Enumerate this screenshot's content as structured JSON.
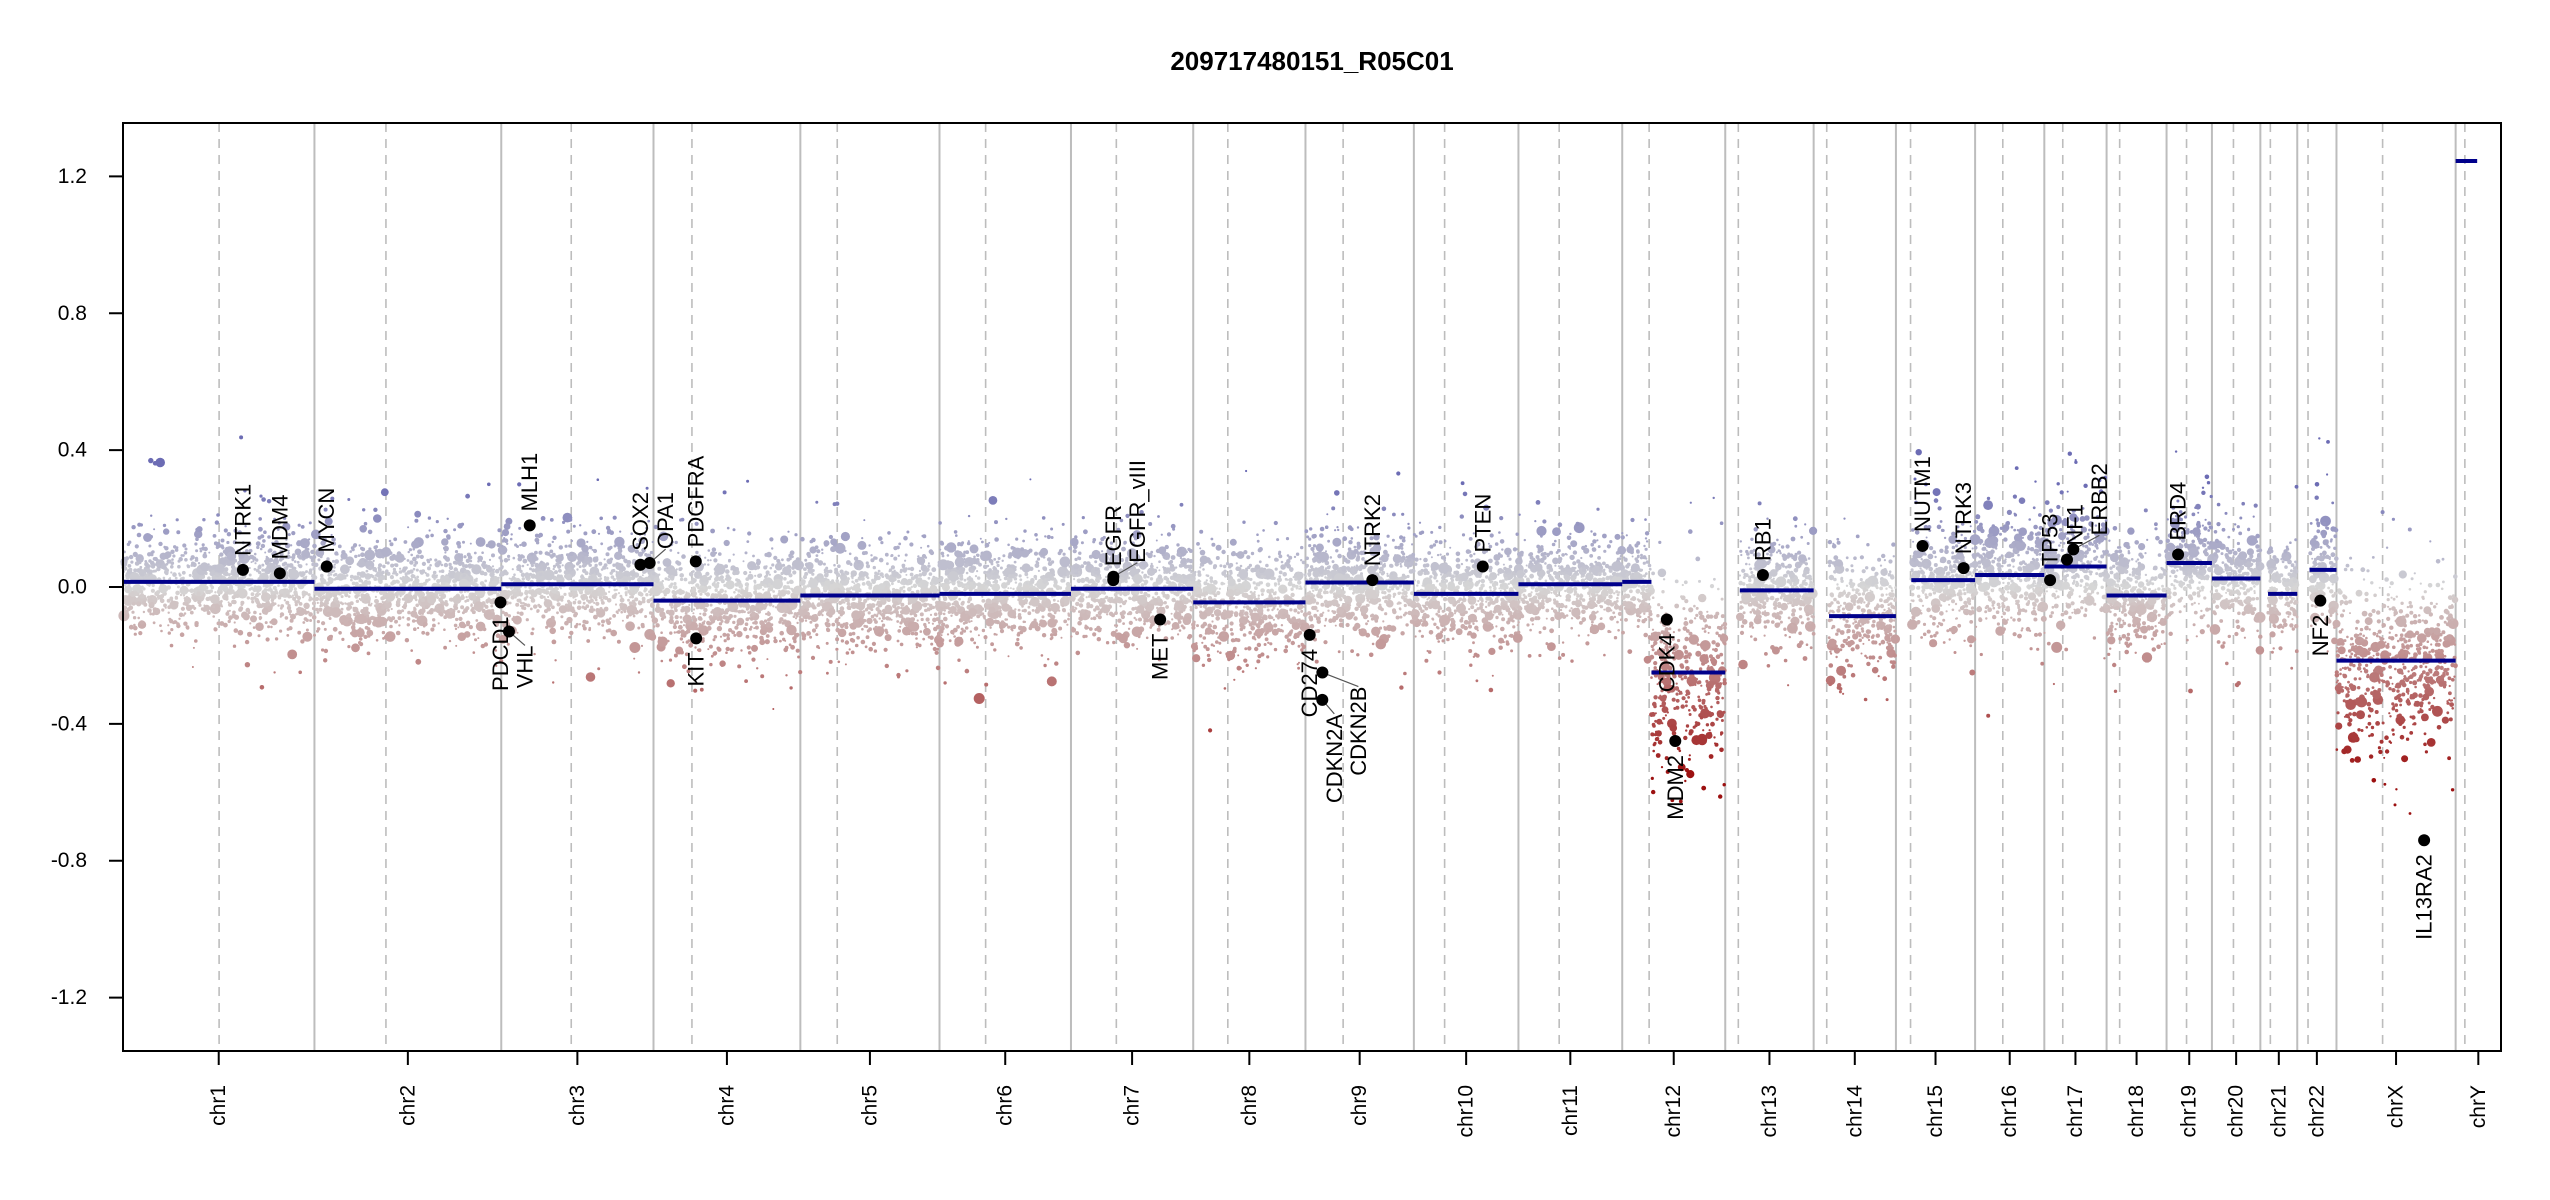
{
  "chart_data": {
    "type": "scatter",
    "title": "209717480151_R05C01",
    "xlabel": "",
    "ylabel": "",
    "ylim": [
      -1.356,
      1.356
    ],
    "yticks": [
      {
        "value": -1.2,
        "label": "-1.2"
      },
      {
        "value": -0.8,
        "label": "-0.8"
      },
      {
        "value": -0.4,
        "label": "-0.4"
      },
      {
        "value": 0.0,
        "label": "0.0"
      },
      {
        "value": 0.4,
        "label": "0.4"
      },
      {
        "value": 0.8,
        "label": "0.8"
      },
      {
        "value": 1.2,
        "label": "1.2"
      }
    ],
    "x_units": "Mb",
    "chromosomes": [
      {
        "name": "chr1",
        "length": 249,
        "centromere": 125
      },
      {
        "name": "chr2",
        "length": 243,
        "centromere": 93
      },
      {
        "name": "chr3",
        "length": 198,
        "centromere": 91
      },
      {
        "name": "chr4",
        "length": 191,
        "centromere": 50
      },
      {
        "name": "chr5",
        "length": 181,
        "centromere": 48
      },
      {
        "name": "chr6",
        "length": 171,
        "centromere": 60
      },
      {
        "name": "chr7",
        "length": 159,
        "centromere": 59
      },
      {
        "name": "chr8",
        "length": 146,
        "centromere": 45
      },
      {
        "name": "chr9",
        "length": 141,
        "centromere": 49
      },
      {
        "name": "chr10",
        "length": 136,
        "centromere": 40
      },
      {
        "name": "chr11",
        "length": 135,
        "centromere": 53
      },
      {
        "name": "chr12",
        "length": 134,
        "centromere": 35
      },
      {
        "name": "chr13",
        "length": 115,
        "centromere": 17
      },
      {
        "name": "chr14",
        "length": 107,
        "centromere": 17
      },
      {
        "name": "chr15",
        "length": 103,
        "centromere": 19
      },
      {
        "name": "chr16",
        "length": 90,
        "centromere": 36
      },
      {
        "name": "chr17",
        "length": 81,
        "centromere": 24
      },
      {
        "name": "chr18",
        "length": 78,
        "centromere": 17
      },
      {
        "name": "chr19",
        "length": 59,
        "centromere": 26
      },
      {
        "name": "chr20",
        "length": 63,
        "centromere": 28
      },
      {
        "name": "chr21",
        "length": 48,
        "centromere": 13
      },
      {
        "name": "chr22",
        "length": 51,
        "centromere": 14
      },
      {
        "name": "chrX",
        "length": 155,
        "centromere": 60
      },
      {
        "name": "chrY",
        "length": 59,
        "centromere": 12
      }
    ],
    "segments": [
      {
        "chr": "chr1",
        "start": 0,
        "end": 249,
        "mean": 0.015
      },
      {
        "chr": "chr2",
        "start": 0,
        "end": 243,
        "mean": -0.005
      },
      {
        "chr": "chr3",
        "start": 0,
        "end": 198,
        "mean": 0.008
      },
      {
        "chr": "chr4",
        "start": 0,
        "end": 191,
        "mean": -0.04
      },
      {
        "chr": "chr5",
        "start": 0,
        "end": 181,
        "mean": -0.025
      },
      {
        "chr": "chr6",
        "start": 0,
        "end": 171,
        "mean": -0.02
      },
      {
        "chr": "chr7",
        "start": 0,
        "end": 159,
        "mean": -0.005
      },
      {
        "chr": "chr8",
        "start": 0,
        "end": 146,
        "mean": -0.045
      },
      {
        "chr": "chr9",
        "start": 0,
        "end": 141,
        "mean": 0.013
      },
      {
        "chr": "chr10",
        "start": 0,
        "end": 136,
        "mean": -0.02
      },
      {
        "chr": "chr11",
        "start": 0,
        "end": 135,
        "mean": 0.008
      },
      {
        "chr": "chr12",
        "start": 0,
        "end": 38,
        "mean": 0.015
      },
      {
        "chr": "chr12",
        "start": 38,
        "end": 134,
        "mean": -0.25
      },
      {
        "chr": "chr13",
        "start": 19,
        "end": 115,
        "mean": -0.01
      },
      {
        "chr": "chr14",
        "start": 20,
        "end": 107,
        "mean": -0.085
      },
      {
        "chr": "chr15",
        "start": 20,
        "end": 103,
        "mean": 0.02
      },
      {
        "chr": "chr16",
        "start": 0,
        "end": 90,
        "mean": 0.035
      },
      {
        "chr": "chr17",
        "start": 0,
        "end": 81,
        "mean": 0.06
      },
      {
        "chr": "chr18",
        "start": 0,
        "end": 78,
        "mean": -0.025
      },
      {
        "chr": "chr19",
        "start": 0,
        "end": 59,
        "mean": 0.07
      },
      {
        "chr": "chr20",
        "start": 0,
        "end": 63,
        "mean": 0.025
      },
      {
        "chr": "chr21",
        "start": 10,
        "end": 48,
        "mean": -0.02
      },
      {
        "chr": "chr22",
        "start": 16,
        "end": 51,
        "mean": 0.05
      },
      {
        "chr": "chrX",
        "start": 0,
        "end": 155,
        "mean": -0.215
      },
      {
        "chr": "chrY",
        "start": 0,
        "end": 28,
        "mean": 1.245
      }
    ],
    "genes": [
      {
        "name": "NTRK1",
        "chr": "chr1",
        "pos": 156,
        "value": 0.05
      },
      {
        "name": "MDM4",
        "chr": "chr1",
        "pos": 204,
        "value": 0.04
      },
      {
        "name": "MYCN",
        "chr": "chr2",
        "pos": 16,
        "value": 0.06
      },
      {
        "name": "PDCD1",
        "chr": "chr2",
        "pos": 242,
        "value": -0.045
      },
      {
        "name": "VHL",
        "chr": "chr3",
        "pos": 10,
        "value": -0.13
      },
      {
        "name": "MLH1",
        "chr": "chr3",
        "pos": 37,
        "value": 0.18
      },
      {
        "name": "SOX2",
        "chr": "chr3",
        "pos": 181,
        "value": 0.065
      },
      {
        "name": "OPA1",
        "chr": "chr3",
        "pos": 193,
        "value": 0.07
      },
      {
        "name": "PDGFRA",
        "chr": "chr4",
        "pos": 55,
        "value": 0.075
      },
      {
        "name": "KIT",
        "chr": "chr4",
        "pos": 55.5,
        "value": -0.15
      },
      {
        "name": "EGFR",
        "chr": "chr7",
        "pos": 55,
        "value": 0.02
      },
      {
        "name": "EGFR_vIII",
        "chr": "chr7",
        "pos": 55.1,
        "value": 0.03
      },
      {
        "name": "MET",
        "chr": "chr7",
        "pos": 116,
        "value": -0.095
      },
      {
        "name": "CD274",
        "chr": "chr9",
        "pos": 5.5,
        "value": -0.14
      },
      {
        "name": "CDKN2A",
        "chr": "chr9",
        "pos": 21.9,
        "value": -0.33
      },
      {
        "name": "CDKN2B",
        "chr": "chr9",
        "pos": 22.0,
        "value": -0.25
      },
      {
        "name": "NTRK2",
        "chr": "chr9",
        "pos": 87,
        "value": 0.02
      },
      {
        "name": "PTEN",
        "chr": "chr10",
        "pos": 89.6,
        "value": 0.06
      },
      {
        "name": "CDK4",
        "chr": "chr12",
        "pos": 58,
        "value": -0.095
      },
      {
        "name": "MDM2",
        "chr": "chr12",
        "pos": 69,
        "value": -0.45
      },
      {
        "name": "RB1",
        "chr": "chr13",
        "pos": 49,
        "value": 0.035
      },
      {
        "name": "NUTM1",
        "chr": "chr15",
        "pos": 34.6,
        "value": 0.12
      },
      {
        "name": "NTRK3",
        "chr": "chr15",
        "pos": 88,
        "value": 0.055
      },
      {
        "name": "TP53",
        "chr": "chr17",
        "pos": 7.5,
        "value": 0.02
      },
      {
        "name": "NF1",
        "chr": "chr17",
        "pos": 29.5,
        "value": 0.08
      },
      {
        "name": "ERBB2",
        "chr": "chr17",
        "pos": 37.8,
        "value": 0.11
      },
      {
        "name": "BRD4",
        "chr": "chr19",
        "pos": 15,
        "value": 0.095
      },
      {
        "name": "NF2",
        "chr": "chr22",
        "pos": 30,
        "value": -0.04
      },
      {
        "name": "IL13RA2",
        "chr": "chrX",
        "pos": 114,
        "value": -0.74
      }
    ],
    "bin_points_per_mb": 4,
    "grid": false,
    "colors": {
      "segment": "#00008b",
      "gain": "#6c6cb4",
      "neutral": "#d6d6d6",
      "loss": "#9c1010",
      "chrom_line": "#bdbdbd",
      "gene_point": "#000000"
    }
  }
}
